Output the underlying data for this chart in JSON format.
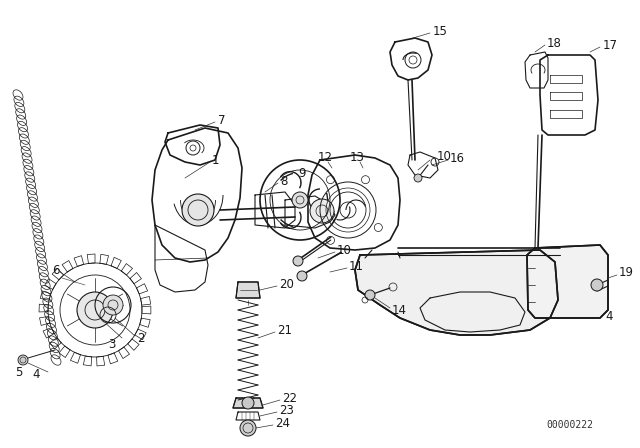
{
  "background_color": "#ffffff",
  "diagram_id": "00000222",
  "line_color": "#1a1a1a",
  "font_size": 8.5,
  "diagram_font_size": 7,
  "gray": "#888888",
  "darkgray": "#444444"
}
